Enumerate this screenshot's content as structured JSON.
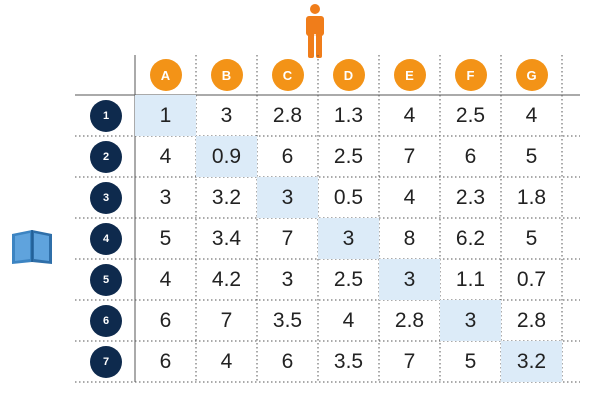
{
  "columns": [
    "A",
    "B",
    "C",
    "D",
    "E",
    "F",
    "G"
  ],
  "rows": [
    "1",
    "2",
    "3",
    "4",
    "5",
    "6",
    "7"
  ],
  "values": [
    [
      "1",
      "3",
      "2.8",
      "1.3",
      "4",
      "2.5",
      "4"
    ],
    [
      "4",
      "0.9",
      "6",
      "2.5",
      "7",
      "6",
      "5"
    ],
    [
      "3",
      "3.2",
      "3",
      "0.5",
      "4",
      "2.3",
      "1.8"
    ],
    [
      "5",
      "3.4",
      "7",
      "3",
      "8",
      "6.2",
      "5"
    ],
    [
      "4",
      "4.2",
      "3",
      "2.5",
      "3",
      "1.1",
      "0.7"
    ],
    [
      "6",
      "7",
      "3.5",
      "4",
      "2.8",
      "3",
      "2.8"
    ],
    [
      "6",
      "4",
      "6",
      "3.5",
      "7",
      "5",
      "3.2"
    ]
  ],
  "highlighted_cells": [
    [
      0,
      0
    ],
    [
      1,
      1
    ],
    [
      2,
      2
    ],
    [
      3,
      3
    ],
    [
      4,
      4
    ],
    [
      5,
      5
    ],
    [
      6,
      6
    ]
  ],
  "colors": {
    "column_badge": "#f39317",
    "row_badge": "#0e2a4d",
    "highlight": "#dcebf8",
    "person_icon": "#f07d1a",
    "book_icon": "#3c84c2"
  },
  "icons": {
    "top": "person-icon",
    "left": "book-icon"
  }
}
